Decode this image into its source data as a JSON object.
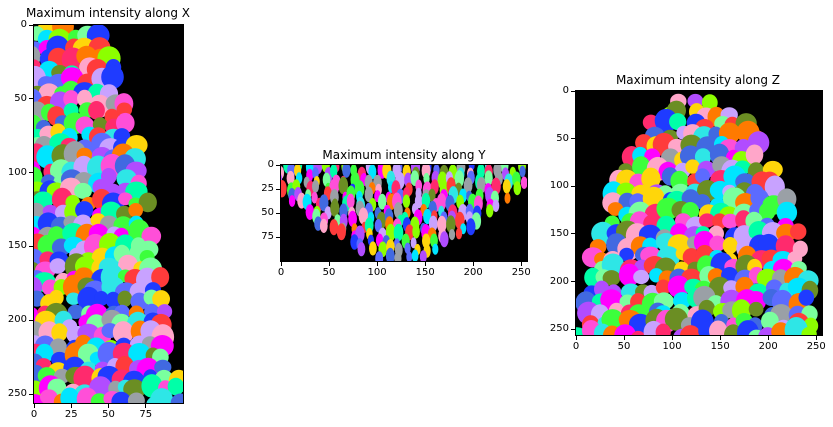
{
  "panels": [
    {
      "title": "Maximum intensity along X",
      "x_ticks": [
        "0",
        "25",
        "50",
        "75"
      ],
      "y_ticks": [
        "0",
        "50",
        "100",
        "150",
        "200",
        "250"
      ]
    },
    {
      "title": "Maximum intensity along Y",
      "x_ticks": [
        "0",
        "50",
        "100",
        "150",
        "200",
        "250"
      ],
      "y_ticks": [
        "0",
        "25",
        "50",
        "75"
      ]
    },
    {
      "title": "Maximum intensity along Z",
      "x_ticks": [
        "0",
        "50",
        "100",
        "150",
        "200",
        "250"
      ],
      "y_ticks": [
        "0",
        "50",
        "100",
        "150",
        "200",
        "250"
      ]
    }
  ],
  "colors": {
    "background": "#ffffff",
    "image_background": "#000000",
    "label_palette": [
      "#1f3bff",
      "#3cff3c",
      "#ff2a6d",
      "#ffd60a",
      "#00e5ff",
      "#b14cff",
      "#ff7a00",
      "#7aff9e",
      "#5c6bff",
      "#ff4fd8",
      "#8cff00",
      "#00ffa8",
      "#c8a2ff",
      "#ff3b3b",
      "#2ee6e6",
      "#9aa0a6",
      "#ffa6c9",
      "#6b8e23",
      "#4169e1",
      "#ff00ff"
    ]
  }
}
